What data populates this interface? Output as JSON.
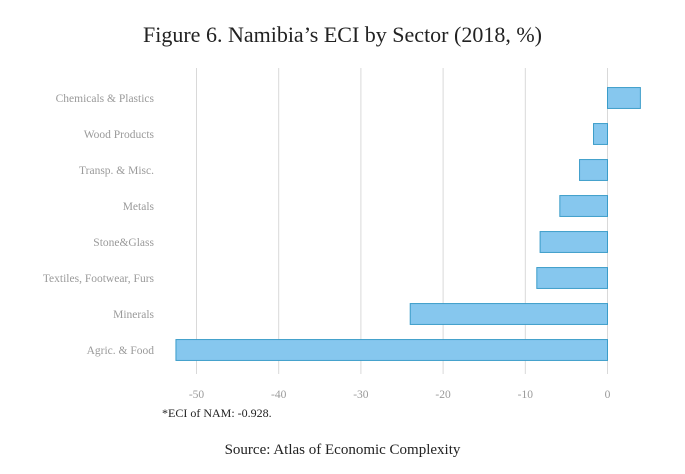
{
  "chart_data": {
    "type": "bar",
    "orientation": "horizontal",
    "title": "Figure 6. Namibia’s ECI by Sector (2018, %)",
    "categories": [
      "Chemicals & Plastics",
      "Wood Products",
      "Transp. & Misc.",
      "Metals",
      "Stone&Glass",
      "Textiles, Footwear, Furs",
      "Minerals",
      "Agric. & Food"
    ],
    "values": [
      4.0,
      -1.7,
      -3.4,
      -5.8,
      -8.2,
      -8.6,
      -24.0,
      -52.5
    ],
    "xlim": [
      -55,
      4.5
    ],
    "xticks": [
      -50,
      -40,
      -30,
      -20,
      -10,
      0
    ],
    "grid": "vertical",
    "bar_color": "#86C7EE",
    "bar_edge_color": "#3A9CC9",
    "footnote": "*ECI of NAM: -0.928.",
    "source": "Source: Atlas of Economic Complexity"
  }
}
